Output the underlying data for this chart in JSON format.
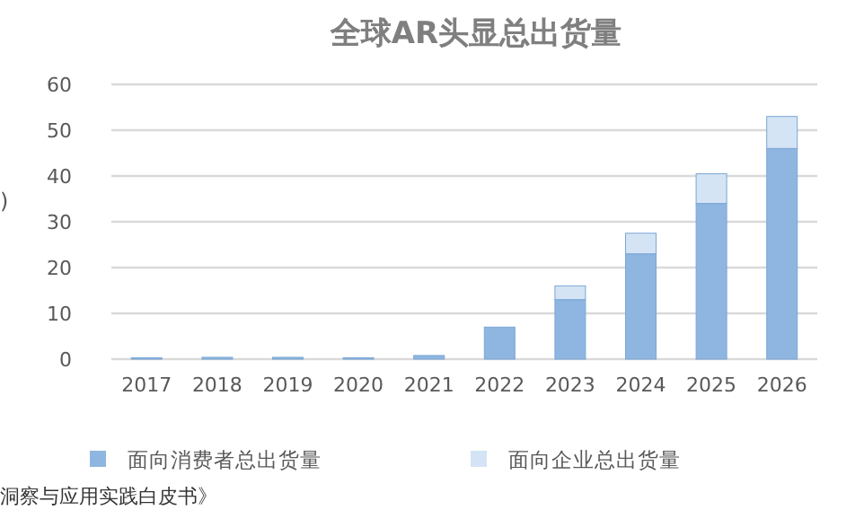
{
  "chart_data": {
    "type": "bar",
    "stacked": true,
    "title": "全球AR头显总出货量",
    "ylabel": ")",
    "categories": [
      "2017",
      "2018",
      "2019",
      "2020",
      "2021",
      "2022",
      "2023",
      "2024",
      "2025",
      "2026"
    ],
    "series": [
      {
        "name": "面向消费者总出货量",
        "color": "#8fb6e0",
        "values": [
          0.3,
          0.4,
          0.4,
          0.3,
          0.8,
          7,
          13,
          23,
          34,
          46
        ]
      },
      {
        "name": "面向企业总出货量",
        "color": "#d4e4f4",
        "values": [
          0,
          0,
          0,
          0,
          0,
          0,
          3,
          4.5,
          6.5,
          7
        ]
      }
    ],
    "ylim": [
      0,
      60
    ],
    "yticks": [
      0,
      10,
      20,
      30,
      40,
      50,
      60
    ],
    "grid": "y",
    "legend": "bottom",
    "annotations": [
      "洞察与应用实践白皮书》"
    ]
  }
}
